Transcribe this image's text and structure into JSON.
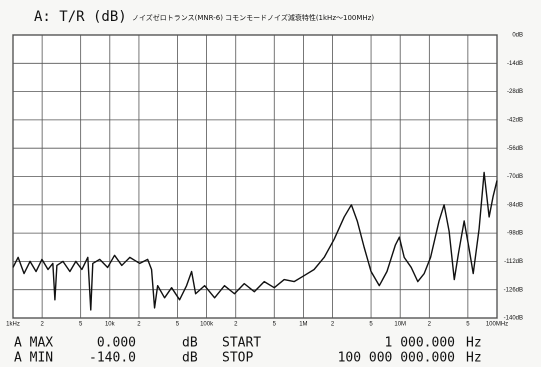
{
  "chart_data": {
    "type": "line",
    "title": "A: T/R (dB)",
    "subtitle": "ノイズゼロトランス(MNR-6) コモンモードノイズ減衰特性(1kHz～100MHz)",
    "xscale": "log",
    "grid": true,
    "color": "#111111",
    "xlim": [
      1000,
      100000000
    ],
    "xticks": [
      {
        "value": 1000,
        "label": "1kHz"
      },
      {
        "value": 2000,
        "label": "2"
      },
      {
        "value": 5000,
        "label": "5"
      },
      {
        "value": 10000,
        "label": "10k"
      },
      {
        "value": 20000,
        "label": "2"
      },
      {
        "value": 50000,
        "label": "5"
      },
      {
        "value": 100000,
        "label": "100k"
      },
      {
        "value": 200000,
        "label": "2"
      },
      {
        "value": 500000,
        "label": "5"
      },
      {
        "value": 1000000,
        "label": "1M"
      },
      {
        "value": 2000000,
        "label": "2"
      },
      {
        "value": 5000000,
        "label": "5"
      },
      {
        "value": 10000000,
        "label": "10M"
      },
      {
        "value": 20000000,
        "label": "2"
      },
      {
        "value": 50000000,
        "label": "5"
      },
      {
        "value": 100000000,
        "label": "100MHz"
      }
    ],
    "ylim": [
      -140,
      0
    ],
    "yticks": [
      {
        "value": 0,
        "label": "0dB"
      },
      {
        "value": -14,
        "label": "-14dB"
      },
      {
        "value": -28,
        "label": "-28dB"
      },
      {
        "value": -42,
        "label": "-42dB"
      },
      {
        "value": -56,
        "label": "-56dB"
      },
      {
        "value": -70,
        "label": "-70dB"
      },
      {
        "value": -84,
        "label": "-84dB"
      },
      {
        "value": -98,
        "label": "-98dB"
      },
      {
        "value": -112,
        "label": "-112dB"
      },
      {
        "value": -126,
        "label": "-126dB"
      },
      {
        "value": -140,
        "label": "-140dB"
      }
    ],
    "x": [
      1000,
      1130,
      1300,
      1500,
      1730,
      1990,
      2300,
      2580,
      2710,
      2840,
      3280,
      3870,
      4460,
      5150,
      5930,
      6360,
      6670,
      7870,
      9500,
      11200,
      13300,
      16100,
      20400,
      24600,
      27000,
      29000,
      31200,
      36800,
      43500,
      52600,
      62100,
      70000,
      77000,
      95500,
      121000,
      153000,
      194000,
      245000,
      311000,
      394000,
      500000,
      633000,
      802000,
      1020000,
      1290000,
      1640000,
      2080000,
      2640000,
      3130000,
      3600000,
      4240000,
      5000000,
      6080000,
      7300000,
      8900000,
      9800000,
      11000000,
      13000000,
      15200000,
      17700000,
      20600000,
      25200000,
      28400000,
      32000000,
      36200000,
      40000000,
      45800000,
      51600000,
      56800000,
      65300000,
      73600000,
      82900000,
      91000000,
      100000000
    ],
    "values": [
      -115,
      -110,
      -118,
      -112,
      -117,
      -111,
      -116,
      -113,
      -131,
      -114,
      -112,
      -117,
      -112,
      -116,
      -110,
      -136,
      -113,
      -111,
      -115,
      -109,
      -114,
      -110,
      -113,
      -111,
      -116,
      -135,
      -124,
      -130,
      -125,
      -131,
      -124,
      -117,
      -128,
      -124,
      -130,
      -124,
      -128,
      -123,
      -127,
      -122,
      -125,
      -121,
      -122,
      -119,
      -116,
      -110,
      -101,
      -90,
      -84,
      -92,
      -105,
      -117,
      -124,
      -117,
      -104,
      -100,
      -110,
      -115,
      -122,
      -118,
      -110,
      -92,
      -84,
      -97,
      -121,
      -108,
      -92,
      -106,
      -118,
      -96,
      -68,
      -90,
      -80,
      -72
    ]
  },
  "footer": {
    "rows": [
      [
        "A MAX",
        "0.000",
        "dB",
        "START",
        "1 000.000",
        "Hz"
      ],
      [
        "A MIN",
        "-140.0",
        "dB",
        "STOP",
        "100 000 000.000",
        "Hz"
      ]
    ]
  }
}
